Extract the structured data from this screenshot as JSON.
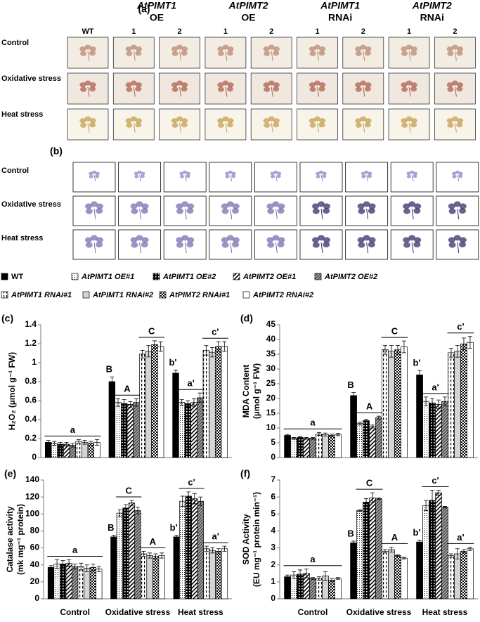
{
  "panel_a": {
    "label": "(a)",
    "wt": "WT",
    "groups": [
      {
        "gene": "AtPIMT1",
        "kind": "OE",
        "lines": [
          "1",
          "2"
        ]
      },
      {
        "gene": "AtPIMT2",
        "kind": "OE",
        "lines": [
          "1",
          "2"
        ]
      },
      {
        "gene": "AtPIMT1",
        "kind": "RNAi",
        "lines": [
          "1",
          "2"
        ]
      },
      {
        "gene": "AtPIMT2",
        "kind": "RNAi",
        "lines": [
          "1",
          "2"
        ]
      }
    ],
    "rows": [
      "Control",
      "Oxidative stress",
      "Heat stress"
    ]
  },
  "panel_b": {
    "label": "(b)",
    "rows": [
      "Control",
      "Oxidative stress",
      "Heat stress"
    ]
  },
  "legend": [
    {
      "name": "WT",
      "fill": "black"
    },
    {
      "name": "AtPIMT1 OE#1",
      "fill": "dots"
    },
    {
      "name": "AtPIMT1 OE#2",
      "fill": "bigdots"
    },
    {
      "name": "AtPIMT2 OE#1",
      "fill": "hatch"
    },
    {
      "name": "AtPIMT2 OE#2",
      "fill": "darkhatch"
    },
    {
      "name": "AtPIMT1 RNAi#1",
      "fill": "dashes"
    },
    {
      "name": "AtPIMT1 RNAi#2",
      "fill": "lightgray"
    },
    {
      "name": "AtPIMT2 RNAi#1",
      "fill": "checker"
    },
    {
      "name": "AtPIMT2 RNAi#2",
      "fill": "white"
    }
  ],
  "chart_data": [
    {
      "type": "bar",
      "label": "(c)",
      "y_label": [
        "H₂O₂ (µmol g⁻¹ FW)"
      ],
      "categories": [
        null,
        null,
        null
      ],
      "ylim": [
        0,
        1.4
      ],
      "yticks": [
        0,
        0.2,
        0.4,
        0.6,
        0.8,
        1,
        1.2,
        1.4
      ],
      "series": [
        {
          "values": [
            0.16,
            0.8,
            0.89
          ],
          "errors": [
            0.02,
            0.05,
            0.03
          ]
        },
        {
          "values": [
            0.15,
            0.58,
            0.58
          ],
          "errors": [
            0.02,
            0.04,
            0.03
          ]
        },
        {
          "values": [
            0.14,
            0.57,
            0.57
          ],
          "errors": [
            0.02,
            0.04,
            0.03
          ]
        },
        {
          "values": [
            0.14,
            0.56,
            0.58
          ],
          "errors": [
            0.02,
            0.03,
            0.04
          ]
        },
        {
          "values": [
            0.13,
            0.58,
            0.63
          ],
          "errors": [
            0.02,
            0.04,
            0.05
          ]
        },
        {
          "values": [
            0.17,
            1.09,
            1.13
          ],
          "errors": [
            0.02,
            0.04,
            0.05
          ]
        },
        {
          "values": [
            0.16,
            1.12,
            1.11
          ],
          "errors": [
            0.02,
            0.06,
            0.05
          ]
        },
        {
          "values": [
            0.15,
            1.19,
            1.17
          ],
          "errors": [
            0.02,
            0.04,
            0.05
          ]
        },
        {
          "values": [
            0.16,
            1.17,
            1.17
          ],
          "errors": [
            0.03,
            0.05,
            0.05
          ]
        }
      ],
      "annotations": [
        {
          "text": "a",
          "category": 0,
          "series": [
            0,
            8
          ]
        },
        {
          "text": "B",
          "category": 1,
          "series": [
            0,
            0
          ]
        },
        {
          "text": "A",
          "category": 1,
          "series": [
            1,
            4
          ]
        },
        {
          "text": "C",
          "category": 1,
          "series": [
            5,
            8
          ]
        },
        {
          "text": "b'",
          "category": 2,
          "series": [
            0,
            0
          ]
        },
        {
          "text": "a'",
          "category": 2,
          "series": [
            1,
            4
          ]
        },
        {
          "text": "c'",
          "category": 2,
          "series": [
            5,
            8
          ]
        }
      ]
    },
    {
      "type": "bar",
      "label": "(d)",
      "y_label": [
        "MDA Content",
        "(µmol g⁻¹ FW)"
      ],
      "categories": [
        null,
        null,
        null
      ],
      "ylim": [
        0,
        45
      ],
      "yticks": [
        0,
        5,
        10,
        15,
        20,
        25,
        30,
        35,
        40,
        45
      ],
      "series": [
        {
          "values": [
            7.5,
            21,
            28
          ],
          "errors": [
            0.3,
            1,
            1.5
          ]
        },
        {
          "values": [
            6.5,
            11.5,
            19
          ],
          "errors": [
            0.3,
            0.5,
            1.5
          ]
        },
        {
          "values": [
            6.8,
            12.5,
            18.5
          ],
          "errors": [
            0.3,
            0.5,
            1.5
          ]
        },
        {
          "values": [
            6.5,
            10.5,
            18
          ],
          "errors": [
            0.3,
            0.5,
            1.5
          ]
        },
        {
          "values": [
            6.5,
            13.5,
            19
          ],
          "errors": [
            0.3,
            0.5,
            1.5
          ]
        },
        {
          "values": [
            8,
            36.5,
            35.5
          ],
          "errors": [
            0.5,
            1.5,
            1.5
          ]
        },
        {
          "values": [
            7.8,
            36,
            36
          ],
          "errors": [
            0.5,
            2,
            2
          ]
        },
        {
          "values": [
            7.5,
            36.5,
            38.5
          ],
          "errors": [
            0.4,
            1.5,
            2
          ]
        },
        {
          "values": [
            7.8,
            37.5,
            39
          ],
          "errors": [
            0.4,
            2,
            2
          ]
        }
      ],
      "annotations": [
        {
          "text": "a",
          "category": 0,
          "series": [
            0,
            8
          ]
        },
        {
          "text": "B",
          "category": 1,
          "series": [
            0,
            0
          ]
        },
        {
          "text": "A",
          "category": 1,
          "series": [
            1,
            4
          ]
        },
        {
          "text": "C",
          "category": 1,
          "series": [
            5,
            8
          ]
        },
        {
          "text": "b'",
          "category": 2,
          "series": [
            0,
            0
          ]
        },
        {
          "text": "a'",
          "category": 2,
          "series": [
            1,
            4
          ]
        },
        {
          "text": "c'",
          "category": 2,
          "series": [
            5,
            8
          ]
        }
      ]
    },
    {
      "type": "bar",
      "label": "(e)",
      "y_label": [
        "Catalase activity",
        "(mk mg⁻¹ protein)"
      ],
      "categories": [
        "Control",
        "Oxidative stress",
        "Heat stress"
      ],
      "ylim": [
        0,
        140
      ],
      "yticks": [
        0,
        20,
        40,
        60,
        80,
        100,
        120,
        140
      ],
      "series": [
        {
          "values": [
            37,
            73,
            73
          ],
          "errors": [
            2,
            2,
            2
          ]
        },
        {
          "values": [
            41,
            101,
            115
          ],
          "errors": [
            5,
            4,
            6
          ]
        },
        {
          "values": [
            41,
            107,
            121
          ],
          "errors": [
            4,
            4,
            5
          ]
        },
        {
          "values": [
            42,
            113,
            118
          ],
          "errors": [
            4,
            3,
            6
          ]
        },
        {
          "values": [
            38,
            104,
            115
          ],
          "errors": [
            3,
            4,
            5
          ]
        },
        {
          "values": [
            38,
            53,
            59
          ],
          "errors": [
            4,
            3,
            3
          ]
        },
        {
          "values": [
            36,
            51,
            57
          ],
          "errors": [
            4,
            3,
            3
          ]
        },
        {
          "values": [
            37,
            50,
            56
          ],
          "errors": [
            4,
            3,
            3
          ]
        },
        {
          "values": [
            35,
            51,
            59
          ],
          "errors": [
            3,
            3,
            3
          ]
        }
      ],
      "annotations": [
        {
          "text": "a",
          "category": 0,
          "series": [
            0,
            8
          ]
        },
        {
          "text": "B",
          "category": 1,
          "series": [
            0,
            0
          ]
        },
        {
          "text": "C",
          "category": 1,
          "series": [
            1,
            4
          ]
        },
        {
          "text": "A",
          "category": 1,
          "series": [
            5,
            8
          ]
        },
        {
          "text": "b'",
          "category": 2,
          "series": [
            0,
            0
          ]
        },
        {
          "text": "c'",
          "category": 2,
          "series": [
            1,
            4
          ]
        },
        {
          "text": "a'",
          "category": 2,
          "series": [
            5,
            8
          ]
        }
      ]
    },
    {
      "type": "bar",
      "label": "(f)",
      "y_label": [
        "SOD Activity",
        "(EU mg⁻¹ protein min⁻¹)"
      ],
      "categories": [
        "Control",
        "Oxidative stress",
        "Heat stress"
      ],
      "ylim": [
        0,
        7
      ],
      "yticks": [
        0,
        1,
        2,
        3,
        4,
        5,
        6,
        7
      ],
      "series": [
        {
          "values": [
            1.3,
            3.3,
            3.35
          ],
          "errors": [
            0.1,
            0.1,
            0.1
          ]
        },
        {
          "values": [
            1.4,
            5.2,
            5.5
          ],
          "errors": [
            0.2,
            0.05,
            0.3
          ]
        },
        {
          "values": [
            1.45,
            5.7,
            5.8
          ],
          "errors": [
            0.25,
            0.2,
            0.6
          ]
        },
        {
          "values": [
            1.5,
            5.95,
            6.25
          ],
          "errors": [
            0.25,
            0.3,
            0.15
          ]
        },
        {
          "values": [
            1.2,
            5.9,
            5.4
          ],
          "errors": [
            0.05,
            0.05,
            0.05
          ]
        },
        {
          "values": [
            1.2,
            2.8,
            2.55
          ],
          "errors": [
            0.1,
            0.1,
            0.1
          ]
        },
        {
          "values": [
            1.35,
            2.9,
            2.65
          ],
          "errors": [
            0.25,
            0.15,
            0.3
          ]
        },
        {
          "values": [
            1.1,
            2.55,
            2.8
          ],
          "errors": [
            0.1,
            0.05,
            0.1
          ]
        },
        {
          "values": [
            1.2,
            2.4,
            2.95
          ],
          "errors": [
            0.05,
            0.05,
            0.1
          ]
        }
      ],
      "annotations": [
        {
          "text": "a",
          "category": 0,
          "series": [
            0,
            8
          ]
        },
        {
          "text": "B",
          "category": 1,
          "series": [
            0,
            0
          ]
        },
        {
          "text": "C",
          "category": 1,
          "series": [
            1,
            4
          ]
        },
        {
          "text": "A",
          "category": 1,
          "series": [
            5,
            8
          ]
        },
        {
          "text": "b'",
          "category": 2,
          "series": [
            0,
            0
          ]
        },
        {
          "text": "c'",
          "category": 2,
          "series": [
            1,
            4
          ]
        },
        {
          "text": "a'",
          "category": 2,
          "series": [
            5,
            8
          ]
        }
      ]
    }
  ]
}
